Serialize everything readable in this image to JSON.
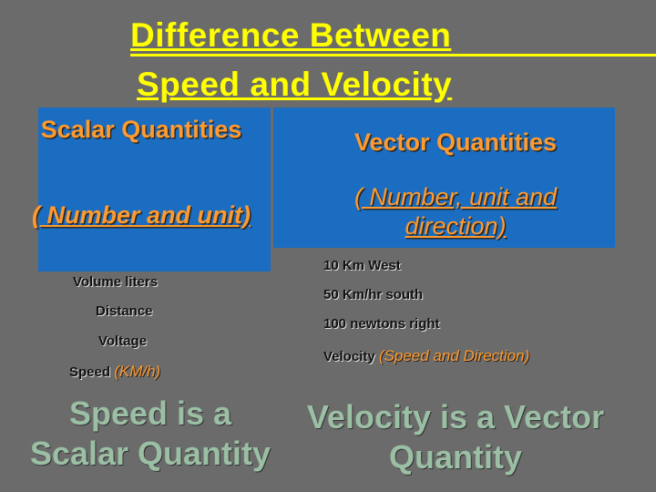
{
  "title": {
    "lines": [
      "Difference Between",
      "Speed and Velocity"
    ]
  },
  "scalar": {
    "heading": "Scalar Quantities",
    "subheading": "( Number and unit)",
    "items": [
      "Volume liters",
      "Distance",
      "Voltage"
    ],
    "last_item": {
      "label": "Speed",
      "note": "(KM/h)"
    }
  },
  "vector": {
    "heading": "Vector Quantities",
    "subheading": "( Number, unit and direction)",
    "items": [
      "10 Km West",
      "50 Km/hr south",
      "100 newtons right"
    ],
    "last_item": {
      "label": "Velocity",
      "note": "(Speed and Direction)"
    }
  },
  "conclusion": {
    "left": [
      "Speed is a",
      "Scalar Quantity"
    ],
    "right": [
      "Velocity is a Vector",
      "Quantity"
    ]
  }
}
